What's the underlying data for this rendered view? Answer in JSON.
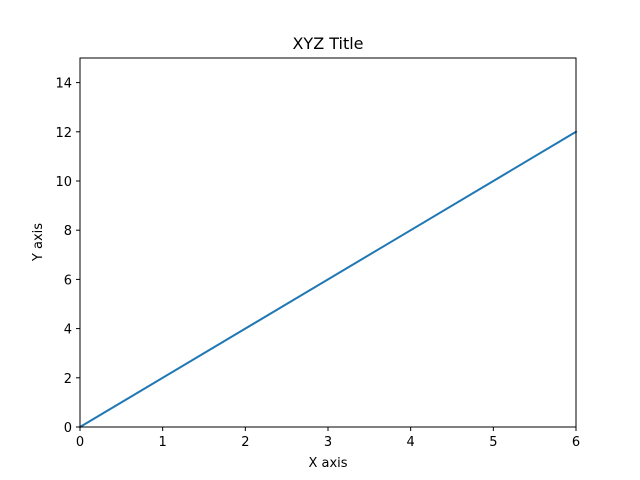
{
  "chart_data": {
    "type": "line",
    "title": "XYZ Title",
    "xlabel": "X axis",
    "ylabel": "Y axis",
    "xlim": [
      0,
      6
    ],
    "ylim": [
      0,
      15
    ],
    "xticks": [
      "0",
      "1",
      "2",
      "3",
      "4",
      "5",
      "6"
    ],
    "yticks": [
      "0",
      "2",
      "4",
      "6",
      "8",
      "10",
      "12",
      "14"
    ],
    "grid": false,
    "legend": null,
    "series": [
      {
        "color": "#1f77b4",
        "x": [
          0,
          6
        ],
        "y": [
          0,
          12
        ]
      }
    ]
  }
}
